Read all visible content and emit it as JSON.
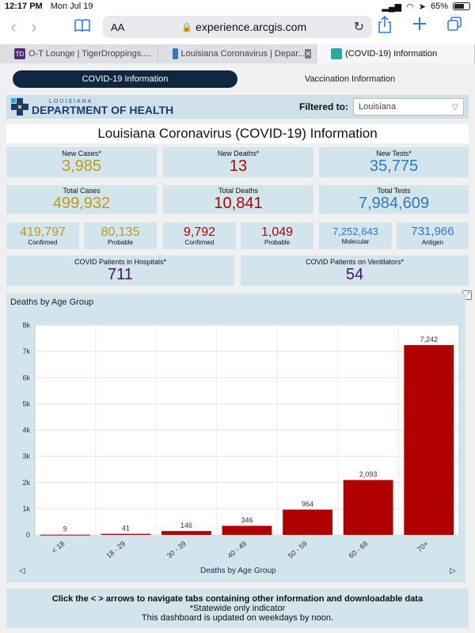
{
  "status": {
    "time": "12:17 PM",
    "date": "Mon Jul 19",
    "battery": "65%",
    "battery_level": 0.65
  },
  "browser": {
    "text_size": "AA",
    "url": "experience.arcgis.com",
    "icons": {
      "back": "chevron-left-icon",
      "forward": "chevron-right-icon",
      "bookmarks": "book-icon",
      "reload": "reload-icon",
      "share": "share-icon",
      "new_tab": "plus-icon",
      "tabs": "tabs-icon"
    },
    "tabs": [
      {
        "title": "O-T Lounge | TigerDroppings....",
        "favicon": "TD"
      },
      {
        "title": "Louisiana Coronavirus | Depar..."
      },
      {
        "title": "(COVID-19) Information"
      }
    ]
  },
  "nav": {
    "tab1": "COVID-19 Information",
    "tab2": "Vaccination Information"
  },
  "header": {
    "logo_top": "LOUISIANA",
    "logo_main": "DEPARTMENT OF HEALTH",
    "filter_label": "Filtered to:",
    "filter_value": "Louisiana"
  },
  "title": "Louisiana Coronavirus (COVID-19) Information",
  "stats": {
    "new_cases": {
      "label": "New Cases*",
      "value": "3,985"
    },
    "new_deaths": {
      "label": "New Deaths*",
      "value": "13"
    },
    "new_tests": {
      "label": "New Tests*",
      "value": "35,775"
    },
    "total_cases": {
      "label": "Total Cases",
      "value": "499,932"
    },
    "total_deaths": {
      "label": "Total Deaths",
      "value": "10,841"
    },
    "total_tests": {
      "label": "Total Tests",
      "value": "7,984,609"
    },
    "cases_confirmed": {
      "label": "Confirmed",
      "value": "419,797"
    },
    "cases_probable": {
      "label": "Probable",
      "value": "80,135"
    },
    "deaths_confirmed": {
      "label": "Confirmed",
      "value": "9,792"
    },
    "deaths_probable": {
      "label": "Probable",
      "value": "1,049"
    },
    "tests_molecular": {
      "label": "Molecular",
      "value": "7,252,643"
    },
    "tests_antigen": {
      "label": "Antigen",
      "value": "731,966"
    },
    "hospitals": {
      "label": "COVID Patients in Hospitals*",
      "value": "711"
    },
    "ventilators": {
      "label": "COVID Patients on Ventilators*",
      "value": "54"
    }
  },
  "chart_data": {
    "type": "bar",
    "title": "Deaths by Age Group",
    "categories": [
      "< 18",
      "18 - 29",
      "30 - 39",
      "40 - 49",
      "50 - 59",
      "60 - 69",
      "70+"
    ],
    "values": [
      9,
      41,
      146,
      346,
      964,
      2093,
      7242
    ],
    "value_labels": [
      "9",
      "41",
      "146",
      "346",
      "964",
      "2,093",
      "7,242"
    ],
    "ylim": [
      0,
      8000
    ],
    "yticks": [
      0,
      1000,
      2000,
      3000,
      4000,
      5000,
      6000,
      7000,
      8000
    ],
    "ytick_labels": [
      "0",
      "1k",
      "2k",
      "3k",
      "4k",
      "5k",
      "6k",
      "7k",
      "8k"
    ],
    "bar_color": "#b00000",
    "grid": true
  },
  "chart_nav": {
    "label": "Deaths by Age Group",
    "prev": "◁",
    "next": "▷"
  },
  "footer": {
    "line1": "Click the < > arrows to navigate tabs containing other information and downloadable data",
    "line2": "*Statewide only indicator",
    "line3": "This dashboard is updated on weekdays by noon."
  }
}
